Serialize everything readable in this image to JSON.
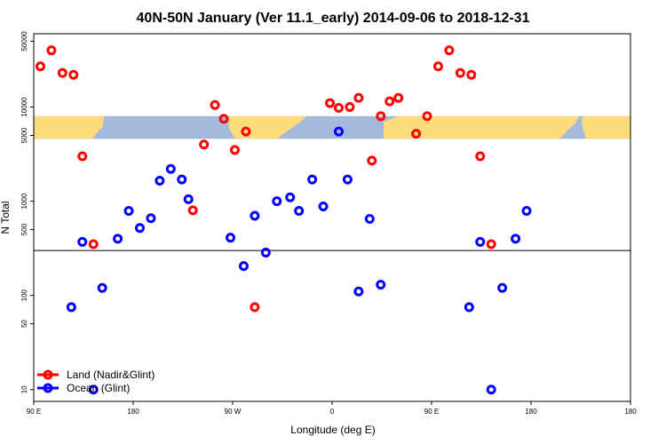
{
  "chart_data": {
    "type": "scatter",
    "title": "40N-50N January (Ver 11.1_early)   2014-09-06 to 2018-12-31",
    "xlabel": "Longitude (deg E)",
    "ylabel": "N Total",
    "xlim": [
      -90,
      180
    ],
    "y_scale": "log",
    "ylim": [
      7.5,
      60000
    ],
    "x_ticks": [
      {
        "value": -90,
        "label": "90 E"
      },
      {
        "value": -45,
        "label": "180"
      },
      {
        "value": 0,
        "label": "90 W"
      },
      {
        "value": 45,
        "label": "0"
      },
      {
        "value": 90,
        "label": "90 E"
      },
      {
        "value": 135,
        "label": "180"
      }
    ],
    "y_ticks": [
      {
        "value": 10,
        "label": "10"
      },
      {
        "value": 50,
        "label": "50"
      },
      {
        "value": 100,
        "label": "100"
      },
      {
        "value": 500,
        "label": "500"
      },
      {
        "value": 1000,
        "label": "1000"
      },
      {
        "value": 5000,
        "label": "5000"
      },
      {
        "value": 10000,
        "label": "10000"
      },
      {
        "value": 50000,
        "label": "50000"
      }
    ],
    "reference_line": {
      "y": 300
    },
    "map_strip": {
      "y_range": [
        4600,
        8000
      ],
      "ocean_color": "#a5b9dc",
      "land_color": "#fddc7c"
    },
    "legend": {
      "position": "bottom-left"
    },
    "series": [
      {
        "name": "Land (Nadir&Glint)",
        "color": "#ff0000",
        "points": [
          [
            -87,
            27000
          ],
          [
            -82,
            40000
          ],
          [
            -77,
            23000
          ],
          [
            -72,
            22000
          ],
          [
            -68,
            3000
          ],
          [
            -63,
            350
          ],
          [
            -18,
            800
          ],
          [
            -13,
            4000
          ],
          [
            -8,
            10500
          ],
          [
            -4,
            7500
          ],
          [
            1,
            3500
          ],
          [
            6,
            5500
          ],
          [
            10,
            75
          ],
          [
            44,
            11000
          ],
          [
            48,
            9800
          ],
          [
            53,
            10000
          ],
          [
            57,
            12500
          ],
          [
            63,
            2700
          ],
          [
            67,
            8000
          ],
          [
            71,
            11500
          ],
          [
            75,
            12500
          ],
          [
            83,
            5200
          ],
          [
            88,
            8000
          ],
          [
            93,
            27000
          ],
          [
            98,
            40000
          ],
          [
            103,
            23000
          ],
          [
            108,
            22000
          ],
          [
            112,
            3000
          ],
          [
            117,
            350
          ]
        ]
      },
      {
        "name": "Ocean (Glint)",
        "color": "#0000ff",
        "points": [
          [
            -73,
            75
          ],
          [
            -68,
            370
          ],
          [
            -63,
            10
          ],
          [
            -59,
            120
          ],
          [
            -52,
            400
          ],
          [
            -47,
            790
          ],
          [
            -42,
            520
          ],
          [
            -37,
            660
          ],
          [
            -33,
            1650
          ],
          [
            -28,
            2200
          ],
          [
            -23,
            1700
          ],
          [
            -20,
            1050
          ],
          [
            -1,
            410
          ],
          [
            5,
            205
          ],
          [
            10,
            700
          ],
          [
            15,
            285
          ],
          [
            20,
            1000
          ],
          [
            26,
            1100
          ],
          [
            30,
            790
          ],
          [
            36,
            1700
          ],
          [
            41,
            880
          ],
          [
            48,
            5500
          ],
          [
            52,
            1700
          ],
          [
            57,
            110
          ],
          [
            62,
            650
          ],
          [
            67,
            130
          ],
          [
            107,
            75
          ],
          [
            112,
            370
          ],
          [
            117,
            10
          ],
          [
            122,
            120
          ],
          [
            128,
            400
          ],
          [
            133,
            790
          ]
        ]
      }
    ]
  }
}
